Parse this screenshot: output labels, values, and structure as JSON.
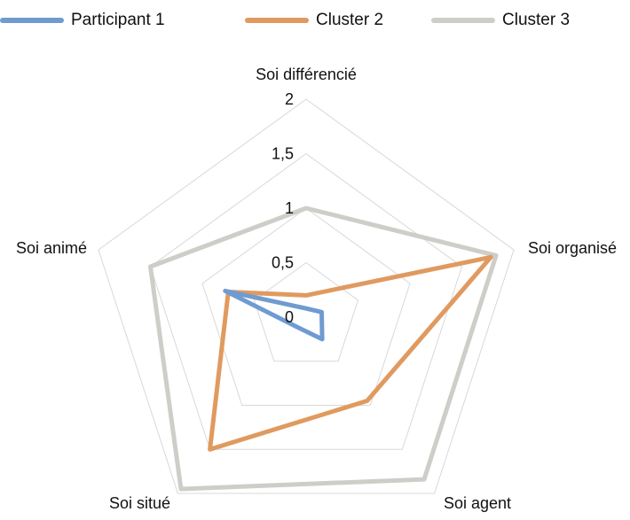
{
  "chart_data": {
    "type": "radar",
    "axes": [
      "Soi différencié",
      "Soi organisé",
      "Soi agent",
      "Soi situé",
      "Soi animé"
    ],
    "rlim": [
      0,
      2
    ],
    "ticks": [
      "0",
      "0,5",
      "1",
      "1,5",
      "2"
    ],
    "tick_values": [
      0,
      0.5,
      1,
      1.5,
      2
    ],
    "grid": true,
    "legend_position": "top",
    "series": [
      {
        "name": "Participant 1",
        "color": "#6f9bd1",
        "values": [
          0.08,
          0.15,
          0.25,
          0.12,
          0.78
        ]
      },
      {
        "name": "Cluster 2",
        "color": "#e09a5f",
        "values": [
          0.2,
          1.78,
          0.95,
          1.5,
          0.75
        ]
      },
      {
        "name": "Cluster 3",
        "color": "#cfcdc8",
        "values": [
          1.0,
          1.83,
          1.84,
          1.95,
          1.5
        ]
      }
    ]
  }
}
